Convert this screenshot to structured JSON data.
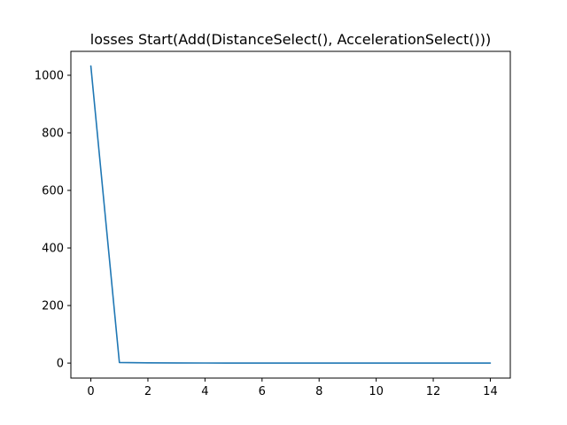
{
  "chart_data": {
    "type": "line",
    "title": "losses Start(Add(DistanceSelect(), AccelerationSelect()))",
    "xlabel": "",
    "ylabel": "",
    "xlim": [
      -0.7,
      14.7
    ],
    "ylim": [
      -52,
      1083
    ],
    "x_ticks": [
      0,
      2,
      4,
      6,
      8,
      10,
      12,
      14
    ],
    "y_ticks": [
      0,
      200,
      400,
      600,
      800,
      1000
    ],
    "grid": false,
    "series": [
      {
        "color": "#1f77b4",
        "x": [
          0,
          1,
          2,
          3,
          4,
          5,
          6,
          7,
          8,
          9,
          10,
          11,
          12,
          13,
          14
        ],
        "y": [
          1032,
          2,
          0.8,
          0.4,
          0.3,
          0.2,
          0.2,
          0.2,
          0.2,
          0.2,
          0.2,
          0.2,
          0.2,
          0.2,
          0.2
        ]
      }
    ]
  }
}
